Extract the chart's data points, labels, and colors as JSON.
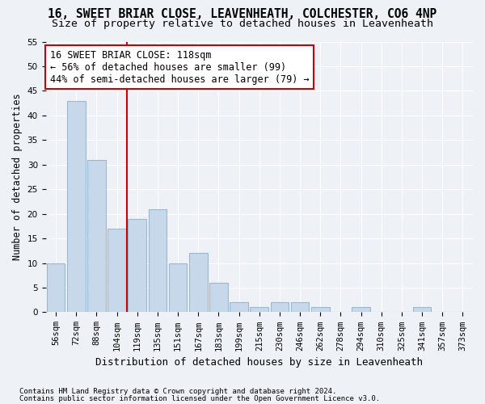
{
  "title1": "16, SWEET BRIAR CLOSE, LEAVENHEATH, COLCHESTER, CO6 4NP",
  "title2": "Size of property relative to detached houses in Leavenheath",
  "xlabel": "Distribution of detached houses by size in Leavenheath",
  "ylabel": "Number of detached properties",
  "bar_values": [
    10,
    43,
    31,
    17,
    19,
    21,
    10,
    12,
    6,
    2,
    1,
    2,
    2,
    1,
    0,
    1,
    0,
    0,
    1,
    0,
    0
  ],
  "bar_labels": [
    "56sqm",
    "72sqm",
    "88sqm",
    "104sqm",
    "119sqm",
    "135sqm",
    "151sqm",
    "167sqm",
    "183sqm",
    "199sqm",
    "215sqm",
    "230sqm",
    "246sqm",
    "262sqm",
    "278sqm",
    "294sqm",
    "310sqm",
    "325sqm",
    "341sqm",
    "357sqm",
    "373sqm"
  ],
  "bar_color": "#c8d8eb",
  "bar_edge_color": "#9ab8d0",
  "vline_x_index": 4,
  "vline_color": "#cc0000",
  "annotation_title": "16 SWEET BRIAR CLOSE: 118sqm",
  "annotation_line1": "← 56% of detached houses are smaller (99)",
  "annotation_line2": "44% of semi-detached houses are larger (79) →",
  "annotation_box_color": "#ffffff",
  "annotation_box_edge": "#cc0000",
  "ylim": [
    0,
    55
  ],
  "yticks": [
    0,
    5,
    10,
    15,
    20,
    25,
    30,
    35,
    40,
    45,
    50,
    55
  ],
  "footnote1": "Contains HM Land Registry data © Crown copyright and database right 2024.",
  "footnote2": "Contains public sector information licensed under the Open Government Licence v3.0.",
  "bg_color": "#eef2f7",
  "grid_color": "#ffffff",
  "title1_fontsize": 10.5,
  "title2_fontsize": 9.5,
  "xlabel_fontsize": 9,
  "ylabel_fontsize": 8.5,
  "tick_fontsize": 7.5,
  "annot_fontsize": 8.5,
  "footnote_fontsize": 6.5
}
